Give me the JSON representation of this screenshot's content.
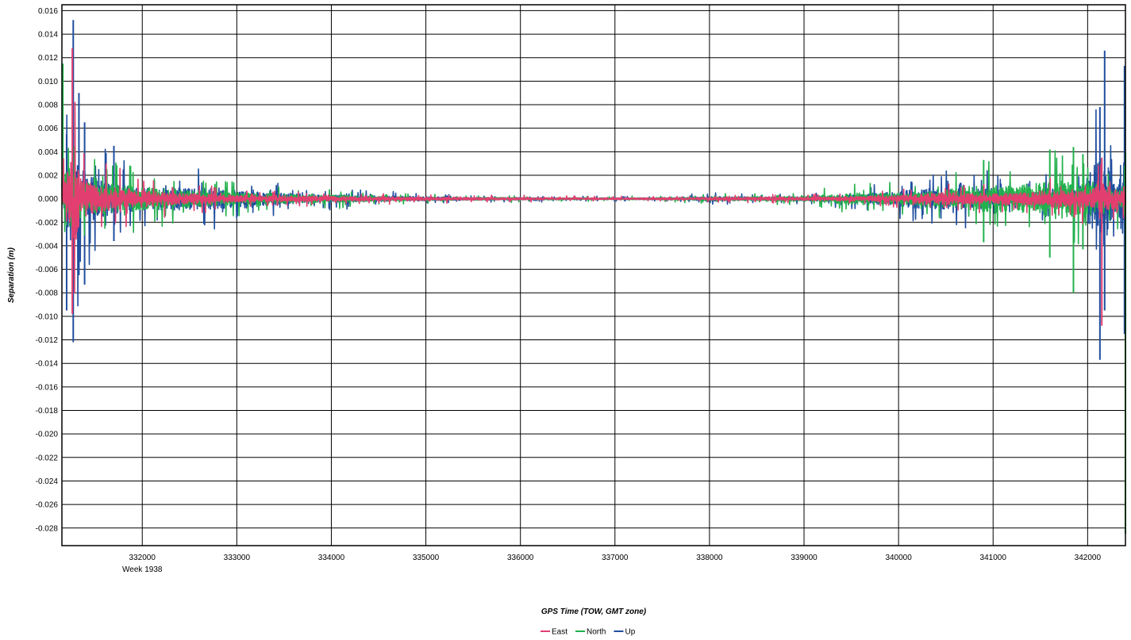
{
  "chart_data": {
    "type": "line",
    "title": "",
    "xlabel": "GPS Time (TOW, GMT zone)",
    "ylabel": "Separation (m)",
    "x_sublabel": "Week 1938",
    "xlim": [
      331150,
      342400
    ],
    "ylim": [
      -0.0295,
      0.0165
    ],
    "x_ticks": [
      332000,
      333000,
      334000,
      335000,
      336000,
      337000,
      338000,
      339000,
      340000,
      341000,
      342000
    ],
    "y_ticks": [
      0.016,
      0.014,
      0.012,
      0.01,
      0.008,
      0.006,
      0.004,
      0.002,
      0.0,
      -0.002,
      -0.004,
      -0.006,
      -0.008,
      -0.01,
      -0.012,
      -0.014,
      -0.016,
      -0.018,
      -0.02,
      -0.022,
      -0.024,
      -0.026,
      -0.028
    ],
    "grid": true,
    "legend_position": "bottom-center",
    "series": [
      {
        "name": "Up",
        "color": "#1f4e9e",
        "envelope": [
          [
            331160,
            0.0045
          ],
          [
            331200,
            0.009
          ],
          [
            331270,
            0.0152
          ],
          [
            331320,
            0.009
          ],
          [
            331400,
            0.0065
          ],
          [
            331550,
            0.0045
          ],
          [
            331800,
            0.0035
          ],
          [
            332000,
            0.0025
          ],
          [
            332300,
            0.0028
          ],
          [
            332600,
            0.0026
          ],
          [
            332800,
            0.0028
          ],
          [
            333000,
            0.002
          ],
          [
            333500,
            0.0014
          ],
          [
            334000,
            0.001
          ],
          [
            334500,
            0.0007
          ],
          [
            335000,
            0.0005
          ],
          [
            335500,
            0.0003
          ],
          [
            336000,
            0.0003
          ],
          [
            337000,
            0.0002
          ],
          [
            337500,
            0.0002
          ],
          [
            338000,
            0.0006
          ],
          [
            338500,
            0.0004
          ],
          [
            339000,
            0.0005
          ],
          [
            339500,
            0.0009
          ],
          [
            340000,
            0.0017
          ],
          [
            340200,
            0.0024
          ],
          [
            340600,
            0.0025
          ],
          [
            341000,
            0.0025
          ],
          [
            341300,
            0.0012
          ],
          [
            341600,
            0.0024
          ],
          [
            341900,
            0.0022
          ],
          [
            342050,
            0.0075
          ],
          [
            342150,
            0.0126
          ],
          [
            342300,
            0.0026
          ],
          [
            342400,
            0.0113
          ]
        ],
        "spikes": [
          [
            331200,
            -0.0095,
            0.0055
          ],
          [
            331270,
            -0.0122,
            0.0152
          ],
          [
            331330,
            -0.0065,
            0.009
          ],
          [
            331390,
            -0.0073,
            0.0065
          ],
          [
            331700,
            -0.0036,
            0.0045
          ],
          [
            342130,
            -0.0137,
            0.0078
          ],
          [
            342180,
            -0.0095,
            0.0126
          ],
          [
            342390,
            -0.0115,
            0.0113
          ]
        ]
      },
      {
        "name": "North",
        "color": "#22b14c",
        "envelope": [
          [
            331160,
            0.009
          ],
          [
            331250,
            0.007
          ],
          [
            331400,
            0.004
          ],
          [
            331800,
            0.0033
          ],
          [
            332300,
            0.0023
          ],
          [
            332700,
            0.002
          ],
          [
            333000,
            0.0016
          ],
          [
            333500,
            0.0012
          ],
          [
            334000,
            0.0009
          ],
          [
            334500,
            0.0006
          ],
          [
            335000,
            0.0004
          ],
          [
            336000,
            0.0003
          ],
          [
            337000,
            0.0002
          ],
          [
            338000,
            0.0004
          ],
          [
            339000,
            0.0006
          ],
          [
            339600,
            0.0015
          ],
          [
            340000,
            0.0014
          ],
          [
            340600,
            0.0022
          ],
          [
            340900,
            0.0033
          ],
          [
            341200,
            0.0032
          ],
          [
            341600,
            0.0042
          ],
          [
            341850,
            0.0044
          ],
          [
            342100,
            0.004
          ],
          [
            342250,
            0.0025
          ],
          [
            342400,
            0.004
          ]
        ],
        "spikes": [
          [
            331160,
            -0.0005,
            0.0115
          ],
          [
            340900,
            -0.0037,
            0.0033
          ],
          [
            341600,
            -0.005,
            0.0042
          ],
          [
            341850,
            -0.008,
            0.0044
          ],
          [
            341950,
            -0.0043,
            0.0038
          ],
          [
            342400,
            -0.0285,
            0.004
          ]
        ]
      },
      {
        "name": "East",
        "color": "#e23f70",
        "envelope": [
          [
            331160,
            0.003
          ],
          [
            331230,
            0.008
          ],
          [
            331290,
            0.0128
          ],
          [
            331340,
            0.005
          ],
          [
            331500,
            0.0035
          ],
          [
            331800,
            0.0025
          ],
          [
            332300,
            0.0015
          ],
          [
            333000,
            0.0009
          ],
          [
            334000,
            0.0006
          ],
          [
            335000,
            0.0004
          ],
          [
            336000,
            0.0003
          ],
          [
            337000,
            0.0002
          ],
          [
            338000,
            0.0003
          ],
          [
            339000,
            0.0004
          ],
          [
            340000,
            0.0008
          ],
          [
            340400,
            0.0015
          ],
          [
            340900,
            0.0012
          ],
          [
            341300,
            0.0015
          ],
          [
            341600,
            0.0022
          ],
          [
            341900,
            0.0018
          ],
          [
            342150,
            0.0035
          ],
          [
            342300,
            0.0022
          ],
          [
            342400,
            0.0015
          ]
        ],
        "spikes": [
          [
            331260,
            -0.0098,
            0.0128
          ],
          [
            342150,
            -0.0108,
            0.0035
          ]
        ]
      }
    ]
  }
}
